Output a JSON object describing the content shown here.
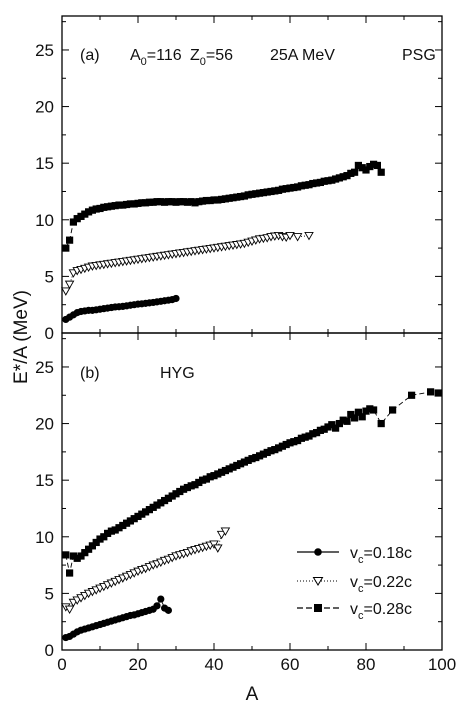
{
  "chart_data": {
    "type": "scatter",
    "xlabel": "A",
    "ylabel": "E*/A (MeV)",
    "xlim": [
      0,
      100
    ],
    "xticks": [
      "0",
      "20",
      "40",
      "60",
      "80",
      "100"
    ],
    "legend": {
      "placement": "lower-right of panel (b)",
      "items": [
        {
          "series": "vc018",
          "prefix": "v",
          "sub": "c",
          "suffix": "=0.18c",
          "marker": "circle",
          "line": "solid"
        },
        {
          "series": "vc022",
          "prefix": "v",
          "sub": "c",
          "suffix": "=0.22c",
          "marker": "triangle-down-open",
          "line": "dotted"
        },
        {
          "series": "vc028",
          "prefix": "v",
          "sub": "c",
          "suffix": "=0.28c",
          "marker": "square",
          "line": "dashed"
        }
      ]
    },
    "panels": [
      {
        "id": "a",
        "ylim": [
          0,
          28
        ],
        "yticks": [
          "0",
          "5",
          "10",
          "15",
          "20",
          "25"
        ],
        "label": "(a)",
        "annotation": {
          "a0_label": "A",
          "a0_sub": "0",
          "a0_value": "=116",
          "z0_label": "Z",
          "z0_sub": "0",
          "z0_value": "=56",
          "energy": "25A MeV",
          "model": "PSG"
        },
        "series": [
          {
            "key": "vc018",
            "marker": "circle",
            "line": "solid",
            "x": [
              1,
              2,
              3,
              4,
              5,
              6,
              7,
              8,
              9,
              10,
              11,
              12,
              13,
              14,
              15,
              16,
              17,
              18,
              19,
              20,
              21,
              22,
              23,
              24,
              25,
              26,
              27,
              28,
              29,
              30
            ],
            "y": [
              1.2,
              1.4,
              1.6,
              1.8,
              1.9,
              1.95,
              2.0,
              2.0,
              2.05,
              2.1,
              2.15,
              2.2,
              2.25,
              2.3,
              2.32,
              2.35,
              2.4,
              2.45,
              2.5,
              2.55,
              2.58,
              2.62,
              2.66,
              2.7,
              2.75,
              2.8,
              2.85,
              2.9,
              2.95,
              3.05
            ]
          },
          {
            "key": "vc022",
            "marker": "triangle-down-open",
            "line": "dotted",
            "x": [
              1,
              2,
              3,
              4,
              5,
              6,
              7,
              8,
              9,
              10,
              11,
              12,
              13,
              14,
              15,
              16,
              17,
              18,
              19,
              20,
              21,
              22,
              23,
              24,
              25,
              26,
              27,
              28,
              29,
              30,
              31,
              32,
              33,
              34,
              35,
              36,
              37,
              38,
              39,
              40,
              41,
              42,
              43,
              44,
              45,
              46,
              47,
              48,
              49,
              50,
              51,
              52,
              53,
              54,
              55,
              56,
              57,
              58,
              59,
              60,
              62,
              65
            ],
            "y": [
              3.7,
              4.3,
              5.3,
              5.5,
              5.6,
              5.7,
              5.8,
              5.9,
              5.95,
              6.0,
              6.05,
              6.1,
              6.15,
              6.2,
              6.25,
              6.3,
              6.35,
              6.4,
              6.45,
              6.5,
              6.55,
              6.6,
              6.65,
              6.7,
              6.75,
              6.8,
              6.85,
              6.9,
              6.95,
              7.0,
              7.05,
              7.1,
              7.15,
              7.2,
              7.25,
              7.3,
              7.35,
              7.4,
              7.45,
              7.5,
              7.55,
              7.6,
              7.65,
              7.7,
              7.75,
              7.8,
              7.85,
              7.9,
              8.0,
              8.1,
              8.2,
              8.3,
              8.35,
              8.4,
              8.5,
              8.55,
              8.6,
              8.5,
              8.45,
              8.6,
              8.5,
              8.6
            ]
          },
          {
            "key": "vc028",
            "marker": "square",
            "line": "dashed",
            "x": [
              1,
              2,
              3,
              4,
              5,
              6,
              7,
              8,
              9,
              10,
              11,
              12,
              13,
              14,
              15,
              16,
              17,
              18,
              19,
              20,
              21,
              22,
              23,
              24,
              25,
              26,
              27,
              28,
              29,
              30,
              31,
              32,
              33,
              34,
              35,
              36,
              37,
              38,
              39,
              40,
              41,
              42,
              43,
              44,
              45,
              46,
              47,
              48,
              49,
              50,
              51,
              52,
              53,
              54,
              55,
              56,
              57,
              58,
              59,
              60,
              61,
              62,
              63,
              64,
              65,
              66,
              67,
              68,
              69,
              70,
              71,
              72,
              73,
              74,
              75,
              76,
              77,
              78,
              79,
              80,
              81,
              82,
              83,
              84
            ],
            "y": [
              7.5,
              8.2,
              9.8,
              10.1,
              10.3,
              10.5,
              10.7,
              10.85,
              10.95,
              11.0,
              11.1,
              11.15,
              11.2,
              11.25,
              11.3,
              11.3,
              11.35,
              11.4,
              11.4,
              11.45,
              11.5,
              11.5,
              11.55,
              11.55,
              11.6,
              11.6,
              11.55,
              11.6,
              11.6,
              11.55,
              11.6,
              11.6,
              11.55,
              11.6,
              11.5,
              11.6,
              11.65,
              11.7,
              11.7,
              11.75,
              11.75,
              11.8,
              11.85,
              11.9,
              11.95,
              12.0,
              12.05,
              12.1,
              12.2,
              12.25,
              12.3,
              12.35,
              12.4,
              12.45,
              12.5,
              12.55,
              12.6,
              12.7,
              12.75,
              12.8,
              12.85,
              12.9,
              13.0,
              13.05,
              13.1,
              13.2,
              13.25,
              13.3,
              13.4,
              13.45,
              13.5,
              13.6,
              13.7,
              13.8,
              13.9,
              14.1,
              14.2,
              14.8,
              14.6,
              14.4,
              14.7,
              14.9,
              14.8,
              14.2
            ]
          }
        ]
      },
      {
        "id": "b",
        "ylim": [
          0,
          28
        ],
        "yticks": [
          "0",
          "5",
          "10",
          "15",
          "20",
          "25"
        ],
        "label": "(b)",
        "annotation": {
          "model": "HYG"
        },
        "series": [
          {
            "key": "vc018",
            "marker": "circle",
            "line": "solid",
            "x": [
              1,
              2,
              3,
              4,
              5,
              6,
              7,
              8,
              9,
              10,
              11,
              12,
              13,
              14,
              15,
              16,
              17,
              18,
              19,
              20,
              21,
              22,
              23,
              24,
              25,
              26,
              27,
              28
            ],
            "y": [
              1.1,
              1.2,
              1.4,
              1.6,
              1.75,
              1.85,
              1.95,
              2.05,
              2.15,
              2.25,
              2.35,
              2.45,
              2.55,
              2.65,
              2.75,
              2.85,
              2.95,
              3.05,
              3.1,
              3.2,
              3.3,
              3.4,
              3.5,
              3.6,
              3.9,
              4.5,
              3.7,
              3.5
            ]
          },
          {
            "key": "vc022",
            "marker": "triangle-down-open",
            "line": "dotted",
            "x": [
              1,
              2,
              3,
              4,
              5,
              6,
              7,
              8,
              9,
              10,
              11,
              12,
              13,
              14,
              15,
              16,
              17,
              18,
              19,
              20,
              21,
              22,
              23,
              24,
              25,
              26,
              27,
              28,
              29,
              30,
              31,
              32,
              33,
              34,
              35,
              36,
              37,
              38,
              39,
              40,
              41,
              42,
              43
            ],
            "y": [
              3.8,
              3.6,
              4.2,
              4.4,
              4.6,
              4.8,
              5.0,
              5.15,
              5.3,
              5.45,
              5.6,
              5.75,
              5.9,
              6.05,
              6.2,
              6.35,
              6.5,
              6.65,
              6.8,
              6.95,
              7.1,
              7.2,
              7.35,
              7.5,
              7.6,
              7.75,
              7.9,
              8.0,
              8.15,
              8.3,
              8.4,
              8.5,
              8.6,
              8.75,
              8.85,
              8.95,
              9.05,
              9.15,
              9.25,
              9.35,
              9.0,
              10.2,
              10.5
            ]
          },
          {
            "key": "vc028",
            "marker": "square",
            "line": "dashed",
            "x": [
              1,
              2,
              3,
              4,
              5,
              6,
              7,
              8,
              9,
              10,
              11,
              12,
              13,
              14,
              15,
              16,
              17,
              18,
              19,
              20,
              21,
              22,
              23,
              24,
              25,
              26,
              27,
              28,
              29,
              30,
              31,
              32,
              33,
              34,
              35,
              36,
              37,
              38,
              39,
              40,
              41,
              42,
              43,
              44,
              45,
              46,
              47,
              48,
              49,
              50,
              51,
              52,
              53,
              54,
              55,
              56,
              57,
              58,
              59,
              60,
              61,
              62,
              63,
              64,
              65,
              66,
              67,
              68,
              69,
              70,
              71,
              72,
              73,
              74,
              75,
              76,
              77,
              78,
              79,
              80,
              81,
              82,
              84,
              87,
              92,
              97,
              99
            ],
            "y": [
              8.4,
              6.8,
              8.3,
              8.1,
              8.3,
              8.6,
              8.9,
              9.2,
              9.5,
              9.8,
              10.0,
              10.3,
              10.5,
              10.6,
              10.8,
              11.0,
              11.2,
              11.4,
              11.6,
              11.8,
              12.0,
              12.2,
              12.4,
              12.6,
              12.8,
              13.0,
              13.2,
              13.4,
              13.6,
              13.8,
              14.0,
              14.2,
              14.35,
              14.5,
              14.6,
              14.8,
              15.0,
              15.1,
              15.3,
              15.4,
              15.55,
              15.7,
              15.85,
              16.0,
              16.15,
              16.3,
              16.45,
              16.6,
              16.75,
              16.9,
              17.0,
              17.15,
              17.3,
              17.45,
              17.6,
              17.7,
              17.85,
              18.0,
              18.15,
              18.3,
              18.4,
              18.5,
              18.7,
              18.8,
              18.9,
              19.1,
              19.2,
              19.4,
              19.5,
              19.7,
              19.9,
              19.6,
              20.0,
              20.3,
              20.2,
              20.8,
              20.5,
              21.0,
              20.6,
              21.1,
              21.3,
              21.2,
              20.0,
              21.2,
              22.5,
              22.8,
              22.7
            ]
          }
        ]
      }
    ]
  }
}
